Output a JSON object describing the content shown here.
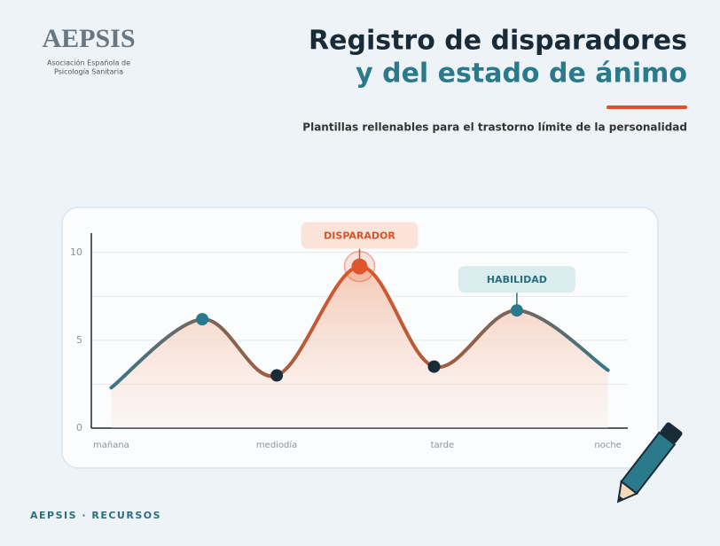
{
  "header": {
    "logo": "AEPSIS",
    "logo_caption": [
      "Asociación Española de",
      "Psicología Sanitaria"
    ],
    "title": [
      "Registro de disparadores",
      "y del estado de ánimo"
    ],
    "subtitle": "Plantillas rellenables para el trastorno límite de la personalidad"
  },
  "chart_data": {
    "type": "line",
    "x": [
      0,
      0.55,
      1.0,
      1.5,
      1.95,
      2.45,
      3
    ],
    "series": [
      {
        "values": [
          2.3,
          6.2,
          3.0,
          9.2,
          3.5,
          6.7,
          3.3
        ],
        "point_colors": [
          null,
          "#2b7a8c",
          "#1a2b38",
          "#e0562a",
          "#1a2b38",
          "#2b7a8c",
          null
        ]
      }
    ],
    "xlim": [
      -0.12,
      3.12
    ],
    "xticks": [
      {
        "value": 0,
        "label": "mañana"
      },
      {
        "value": 1,
        "label": "mediodía"
      },
      {
        "value": 2,
        "label": "tarde"
      },
      {
        "value": 3,
        "label": "noche"
      }
    ],
    "ylim": [
      0,
      11.1
    ],
    "yticks": [
      0,
      5,
      10
    ],
    "minor_grid": [
      2.5,
      7.5
    ],
    "grid": true,
    "annotations": [
      {
        "text": "DISPARADOR",
        "point": 3,
        "color": "#d4552a",
        "background": "#fbe3d9"
      },
      {
        "text": "HABILIDAD",
        "point": 5,
        "color": "#2b6f7f",
        "background": "#dbecef"
      }
    ]
  },
  "footer": "AEPSIS · RECURSOS"
}
